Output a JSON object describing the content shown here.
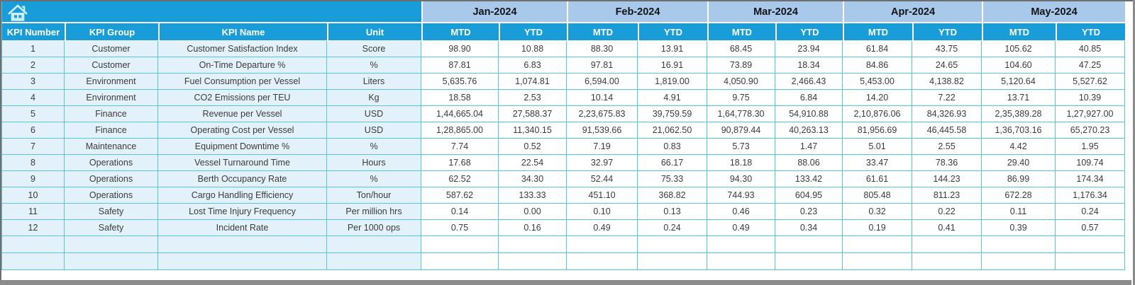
{
  "icons": {
    "home": "house"
  },
  "colors": {
    "header_cyan": "#189dd8",
    "month_band_blue": "#a9c9ea",
    "row_tint_blue": "#e3f1fa",
    "grid_line_cyan": "#58c4e1",
    "frame_gray": "#8b8b8b"
  },
  "table": {
    "column_headers": [
      "KPI Number",
      "KPI Group",
      "KPI Name",
      "Unit"
    ],
    "months": [
      "Jan-2024",
      "Feb-2024",
      "Mar-2024",
      "Apr-2024",
      "May-2024"
    ],
    "period_subheaders": [
      "MTD",
      "YTD"
    ],
    "empty_row_count": 2,
    "rows": [
      {
        "number": "1",
        "group": "Customer",
        "name": "Customer Satisfaction Index",
        "unit": "Score",
        "values": [
          "98.90",
          "10.88",
          "88.30",
          "13.91",
          "68.45",
          "23.94",
          "61.84",
          "43.75",
          "105.62",
          "40.85"
        ]
      },
      {
        "number": "2",
        "group": "Customer",
        "name": "On-Time Departure %",
        "unit": "%",
        "values": [
          "87.81",
          "6.83",
          "97.81",
          "16.91",
          "73.89",
          "18.34",
          "84.86",
          "24.65",
          "104.60",
          "47.25"
        ]
      },
      {
        "number": "3",
        "group": "Environment",
        "name": "Fuel Consumption per Vessel",
        "unit": "Liters",
        "values": [
          "5,635.76",
          "1,074.81",
          "6,594.00",
          "1,819.00",
          "4,050.90",
          "2,466.43",
          "5,453.00",
          "4,138.82",
          "5,120.64",
          "5,527.62"
        ]
      },
      {
        "number": "4",
        "group": "Environment",
        "name": "CO2 Emissions per TEU",
        "unit": "Kg",
        "values": [
          "18.58",
          "2.53",
          "10.14",
          "4.91",
          "9.75",
          "6.84",
          "14.20",
          "7.22",
          "13.71",
          "10.39"
        ]
      },
      {
        "number": "5",
        "group": "Finance",
        "name": "Revenue per Vessel",
        "unit": "USD",
        "values": [
          "1,44,665.04",
          "27,588.37",
          "2,23,675.83",
          "39,759.59",
          "1,64,778.30",
          "54,910.88",
          "2,10,876.06",
          "84,326.93",
          "2,35,389.28",
          "1,27,927.00"
        ]
      },
      {
        "number": "6",
        "group": "Finance",
        "name": "Operating Cost per Vessel",
        "unit": "USD",
        "values": [
          "1,28,865.00",
          "11,340.15",
          "91,539.66",
          "21,062.50",
          "90,879.44",
          "40,263.13",
          "81,956.69",
          "46,445.58",
          "1,36,703.16",
          "65,270.23"
        ]
      },
      {
        "number": "7",
        "group": "Maintenance",
        "name": "Equipment Downtime %",
        "unit": "%",
        "values": [
          "7.74",
          "0.52",
          "7.19",
          "0.83",
          "5.73",
          "1.47",
          "5.01",
          "2.55",
          "4.42",
          "1.95"
        ]
      },
      {
        "number": "8",
        "group": "Operations",
        "name": "Vessel Turnaround Time",
        "unit": "Hours",
        "values": [
          "17.68",
          "22.54",
          "32.97",
          "66.17",
          "18.18",
          "88.06",
          "33.47",
          "78.36",
          "29.40",
          "109.74"
        ]
      },
      {
        "number": "9",
        "group": "Operations",
        "name": "Berth Occupancy Rate",
        "unit": "%",
        "values": [
          "62.52",
          "34.30",
          "52.44",
          "75.33",
          "94.30",
          "133.42",
          "61.61",
          "144.23",
          "86.99",
          "174.34"
        ]
      },
      {
        "number": "10",
        "group": "Operations",
        "name": "Cargo Handling Efficiency",
        "unit": "Ton/hour",
        "values": [
          "587.62",
          "133.33",
          "451.10",
          "368.82",
          "744.93",
          "604.95",
          "805.48",
          "811.23",
          "672.28",
          "1,176.34"
        ]
      },
      {
        "number": "11",
        "group": "Safety",
        "name": "Lost Time Injury Frequency",
        "unit": "Per million hrs",
        "values": [
          "0.14",
          "0.00",
          "0.10",
          "0.13",
          "0.46",
          "0.23",
          "0.32",
          "0.22",
          "0.11",
          "0.24"
        ]
      },
      {
        "number": "12",
        "group": "Safety",
        "name": "Incident Rate",
        "unit": "Per 1000 ops",
        "values": [
          "0.75",
          "0.16",
          "0.49",
          "0.24",
          "0.49",
          "0.34",
          "0.19",
          "0.41",
          "0.39",
          "0.57"
        ]
      }
    ]
  }
}
